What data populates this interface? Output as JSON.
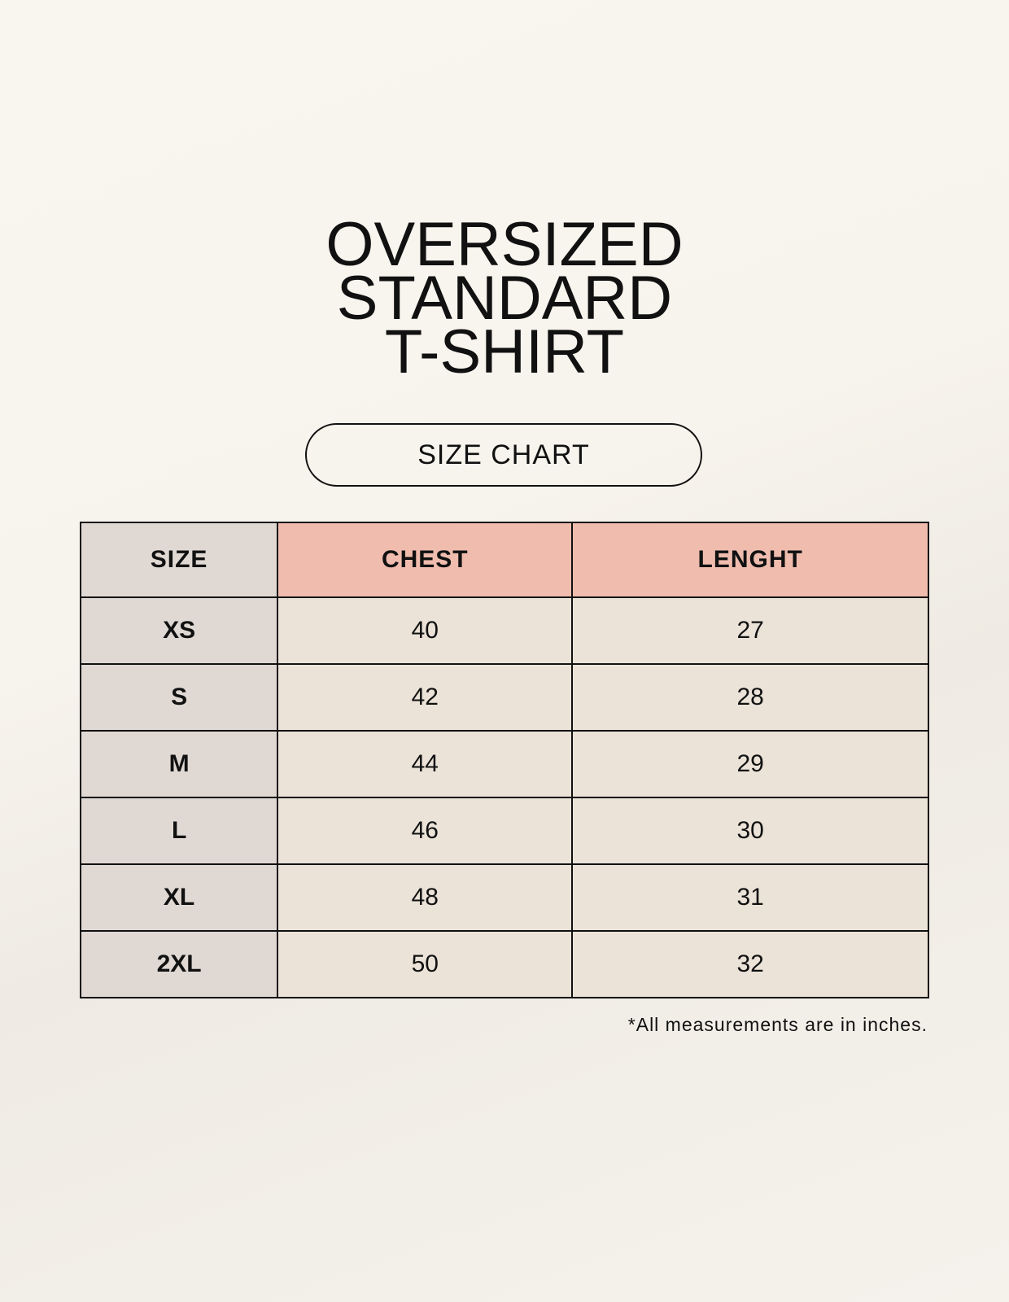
{
  "title_lines": [
    "OVERSIZED",
    "STANDARD",
    "T-SHIRT"
  ],
  "badge": "SIZE CHART",
  "table": {
    "headers": [
      "SIZE",
      "CHEST",
      "LENGHT"
    ],
    "rows": [
      [
        "XS",
        "40",
        "27"
      ],
      [
        "S",
        "42",
        "28"
      ],
      [
        "M",
        "44",
        "29"
      ],
      [
        "L",
        "46",
        "30"
      ],
      [
        "XL",
        "48",
        "31"
      ],
      [
        "2XL",
        "50",
        "32"
      ]
    ]
  },
  "footnote": "*All measurements are in inches.",
  "colors": {
    "size_column": "#e0d9d3",
    "header_accent": "#efbcae",
    "cell": "#ebe3d8",
    "background": "#f8f5ee"
  }
}
